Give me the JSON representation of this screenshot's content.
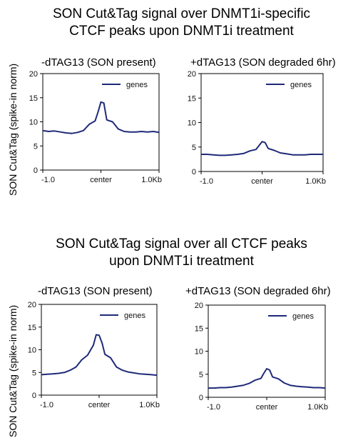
{
  "figure": {
    "section_top_title_line1": "SON Cut&Tag signal over DNMT1i-specific",
    "section_top_title_line2": "CTCF peaks upon DNMT1i treatment",
    "section_bottom_title_line1": "SON Cut&Tag signal over all CTCF peaks",
    "section_bottom_title_line2": "upon DNMT1i treatment",
    "y_axis_label": "SON Cut&Tag (spike-in norm)",
    "line_color": "#1f2a78"
  },
  "chart_data": [
    {
      "type": "line",
      "title": "-dTAG13 (SON present)",
      "ylim": [
        0,
        20
      ],
      "yticks": [
        0,
        5,
        10,
        15,
        20
      ],
      "xtick_labels": [
        "-1.0",
        "center",
        "1.0Kb"
      ],
      "legend": "top-right",
      "series": [
        {
          "name": "genes",
          "x": [
            -1.0,
            -0.9,
            -0.8,
            -0.7,
            -0.6,
            -0.5,
            -0.4,
            -0.3,
            -0.2,
            -0.1,
            -0.05,
            0.0,
            0.05,
            0.1,
            0.2,
            0.3,
            0.4,
            0.5,
            0.6,
            0.7,
            0.8,
            0.9,
            1.0
          ],
          "y": [
            8.2,
            8.0,
            8.1,
            7.9,
            7.7,
            7.6,
            7.8,
            8.2,
            9.5,
            10.2,
            12.0,
            14.1,
            13.9,
            10.4,
            10.0,
            8.5,
            8.0,
            7.9,
            7.9,
            8.0,
            7.9,
            8.0,
            7.8
          ]
        }
      ]
    },
    {
      "type": "line",
      "title": "+dTAG13 (SON degraded 6hr)",
      "ylim": [
        0,
        20
      ],
      "yticks": [
        0,
        5,
        10,
        15,
        20
      ],
      "xtick_labels": [
        "-1.0",
        "center",
        "1.0Kb"
      ],
      "legend": "top-right",
      "series": [
        {
          "name": "genes",
          "x": [
            -1.0,
            -0.9,
            -0.8,
            -0.7,
            -0.6,
            -0.5,
            -0.4,
            -0.3,
            -0.2,
            -0.1,
            -0.05,
            0.0,
            0.05,
            0.1,
            0.2,
            0.3,
            0.4,
            0.5,
            0.6,
            0.7,
            0.8,
            0.9,
            1.0
          ],
          "y": [
            3.5,
            3.5,
            3.4,
            3.3,
            3.3,
            3.4,
            3.5,
            3.7,
            4.2,
            4.5,
            5.3,
            6.1,
            5.9,
            4.7,
            4.3,
            3.8,
            3.6,
            3.4,
            3.4,
            3.4,
            3.5,
            3.5,
            3.5
          ]
        }
      ]
    },
    {
      "type": "line",
      "title": "-dTAG13 (SON present)",
      "ylim": [
        0,
        20
      ],
      "yticks": [
        0,
        5,
        10,
        15,
        20
      ],
      "xtick_labels": [
        "-1.0",
        "center",
        "1.0Kb"
      ],
      "legend": "top-right",
      "series": [
        {
          "name": "genes",
          "x": [
            -1.0,
            -0.9,
            -0.8,
            -0.7,
            -0.6,
            -0.5,
            -0.4,
            -0.3,
            -0.2,
            -0.1,
            -0.05,
            0.0,
            0.05,
            0.1,
            0.2,
            0.3,
            0.4,
            0.5,
            0.6,
            0.7,
            0.8,
            0.9,
            1.0
          ],
          "y": [
            4.5,
            4.6,
            4.7,
            4.8,
            5.0,
            5.5,
            6.2,
            7.8,
            8.8,
            11.0,
            13.3,
            13.2,
            11.5,
            9.0,
            8.2,
            6.2,
            5.5,
            5.1,
            4.9,
            4.7,
            4.6,
            4.5,
            4.4
          ]
        }
      ]
    },
    {
      "type": "line",
      "title": "+dTAG13 (SON degraded 6hr)",
      "ylim": [
        0,
        20
      ],
      "yticks": [
        0,
        5,
        10,
        15,
        20
      ],
      "xtick_labels": [
        "-1.0",
        "center",
        "1.0Kb"
      ],
      "legend": "top-right",
      "series": [
        {
          "name": "genes",
          "x": [
            -1.0,
            -0.9,
            -0.8,
            -0.7,
            -0.6,
            -0.5,
            -0.4,
            -0.3,
            -0.2,
            -0.1,
            -0.05,
            0.0,
            0.05,
            0.1,
            0.2,
            0.3,
            0.4,
            0.5,
            0.6,
            0.7,
            0.8,
            0.9,
            1.0
          ],
          "y": [
            2.0,
            2.0,
            2.1,
            2.1,
            2.2,
            2.4,
            2.6,
            3.0,
            3.7,
            4.1,
            5.2,
            6.2,
            5.9,
            4.4,
            4.0,
            3.1,
            2.6,
            2.4,
            2.3,
            2.2,
            2.1,
            2.1,
            2.0
          ]
        }
      ]
    }
  ]
}
